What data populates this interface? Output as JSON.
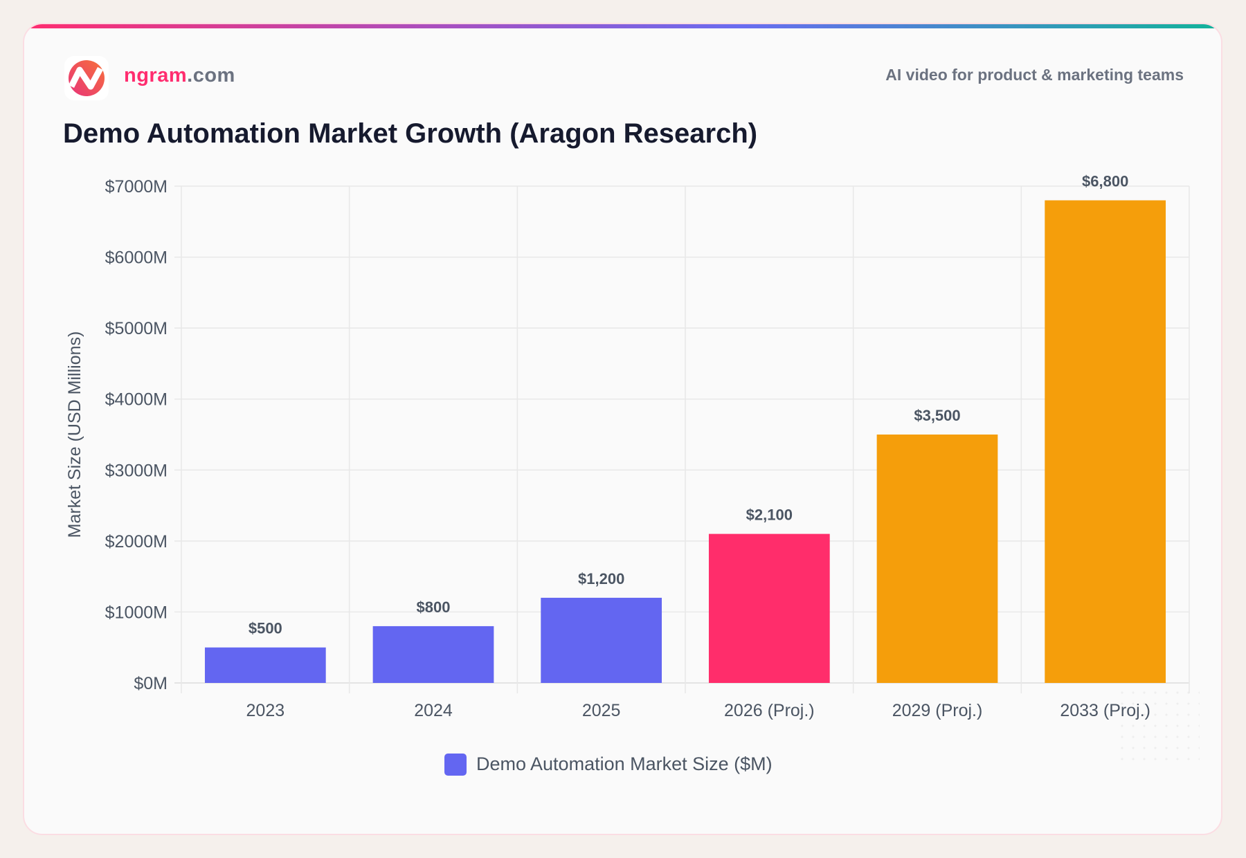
{
  "header": {
    "brand_main": "ngram",
    "brand_suffix": ".com",
    "tagline": "AI video for product & marketing teams"
  },
  "chart_data": {
    "type": "bar",
    "title": "Demo Automation Market Growth (Aragon Research)",
    "categories": [
      "2023",
      "2024",
      "2025",
      "2026 (Proj.)",
      "2029 (Proj.)",
      "2033 (Proj.)"
    ],
    "series": [
      {
        "name": "Demo Automation Market Size ($M)",
        "values": [
          500,
          800,
          1200,
          2100,
          3500,
          6800
        ]
      }
    ],
    "data_labels": [
      "$500",
      "$800",
      "$1,200",
      "$2,100",
      "$3,500",
      "$6,800"
    ],
    "bar_colors": [
      "#6366f1",
      "#6366f1",
      "#6366f1",
      "#ff2d6b",
      "#f59e0b",
      "#f59e0b"
    ],
    "ylabel": "Market Size (USD Millions)",
    "xlabel": "",
    "ylim": [
      0,
      7000
    ],
    "yticks": [
      "$0M",
      "$1000M",
      "$2000M",
      "$3000M",
      "$4000M",
      "$5000M",
      "$6000M",
      "$7000M"
    ],
    "grid": true,
    "legend": "bottom",
    "legend_color": "#6366f1"
  }
}
